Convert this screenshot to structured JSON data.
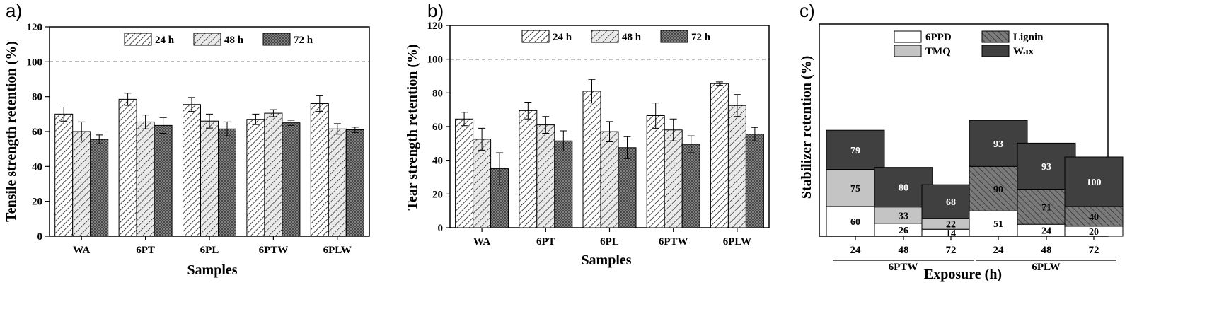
{
  "chart_data": [
    {
      "panel": "a)",
      "type": "bar",
      "xlabel": "Samples",
      "ylabel": "Tensile strength retention (%)",
      "ylim": [
        0,
        120
      ],
      "yticks": [
        0,
        20,
        40,
        60,
        80,
        100,
        120
      ],
      "reference_line": 100,
      "categories": [
        "WA",
        "6PT",
        "6PL",
        "6PTW",
        "6PLW"
      ],
      "series": [
        {
          "name": "24 h",
          "values": [
            70,
            78.5,
            75.5,
            67,
            76
          ],
          "errors": [
            4,
            3.5,
            4,
            3,
            4.5
          ]
        },
        {
          "name": "48 h",
          "values": [
            60,
            65.5,
            66,
            70.5,
            61.5
          ],
          "errors": [
            5.5,
            4,
            4,
            2,
            3
          ]
        },
        {
          "name": "72 h",
          "values": [
            55.5,
            63.5,
            61.5,
            65,
            61
          ],
          "errors": [
            2.5,
            4.5,
            4,
            1.5,
            1.5
          ]
        }
      ],
      "legend": "top"
    },
    {
      "panel": "b)",
      "type": "bar",
      "xlabel": "Samples",
      "ylabel": "Tear strength retention (%)",
      "ylim": [
        0,
        120
      ],
      "yticks": [
        0,
        20,
        40,
        60,
        80,
        100,
        120
      ],
      "reference_line": 100,
      "categories": [
        "WA",
        "6PT",
        "6PL",
        "6PTW",
        "6PLW"
      ],
      "series": [
        {
          "name": "24 h",
          "values": [
            64.5,
            69.5,
            81,
            66.5,
            85.5
          ],
          "errors": [
            4,
            5,
            7,
            7.5,
            1
          ]
        },
        {
          "name": "48 h",
          "values": [
            52.5,
            61,
            57,
            58,
            72.5
          ],
          "errors": [
            6.5,
            5,
            6,
            6.5,
            6.5
          ]
        },
        {
          "name": "72 h",
          "values": [
            35,
            51.5,
            47.5,
            49.5,
            55.5
          ],
          "errors": [
            9.5,
            6,
            6.5,
            5,
            4
          ]
        }
      ],
      "legend": "top"
    },
    {
      "panel": "c)",
      "type": "stacked-bar",
      "xlabel": "Exposure (h)",
      "ylabel": "Stabilizer retention (%)",
      "categories": [
        "24",
        "48",
        "72",
        "24",
        "48",
        "72"
      ],
      "groups": [
        {
          "name": "6PTW",
          "indices": [
            0,
            1,
            2
          ]
        },
        {
          "name": "6PLW",
          "indices": [
            3,
            4,
            5
          ]
        }
      ],
      "legend_entries": [
        "6PPD",
        "Lignin",
        "TMQ",
        "Wax"
      ],
      "legend": "top",
      "bars": [
        {
          "segments": [
            {
              "series": "6PPD",
              "label": "60"
            },
            {
              "series": "TMQ",
              "label": "75"
            },
            {
              "series": "Wax",
              "label": "79"
            }
          ]
        },
        {
          "segments": [
            {
              "series": "6PPD",
              "label": "26"
            },
            {
              "series": "TMQ",
              "label": "33"
            },
            {
              "series": "Wax",
              "label": "80"
            }
          ]
        },
        {
          "segments": [
            {
              "series": "6PPD",
              "label": "14"
            },
            {
              "series": "TMQ",
              "label": "22"
            },
            {
              "series": "Wax",
              "label": "68"
            }
          ]
        },
        {
          "segments": [
            {
              "series": "6PPD",
              "label": "51"
            },
            {
              "series": "Lignin",
              "label": "90"
            },
            {
              "series": "Wax",
              "label": "93"
            }
          ]
        },
        {
          "segments": [
            {
              "series": "6PPD",
              "label": "24"
            },
            {
              "series": "Lignin",
              "label": "71"
            },
            {
              "series": "Wax",
              "label": "93"
            }
          ]
        },
        {
          "segments": [
            {
              "series": "6PPD",
              "label": "20"
            },
            {
              "series": "Lignin",
              "label": "40"
            },
            {
              "series": "Wax",
              "label": "100"
            }
          ]
        }
      ]
    }
  ],
  "styles": {
    "ink": "#000000",
    "bar_fill": "#e9e9e9",
    "bar_fill_dense": "#d4d4d4",
    "ppd_fill": "#ffffff",
    "tmq_fill": "#c4c4c4",
    "lignin_fill": "#7a7a7a",
    "wax_fill": "#404040"
  }
}
